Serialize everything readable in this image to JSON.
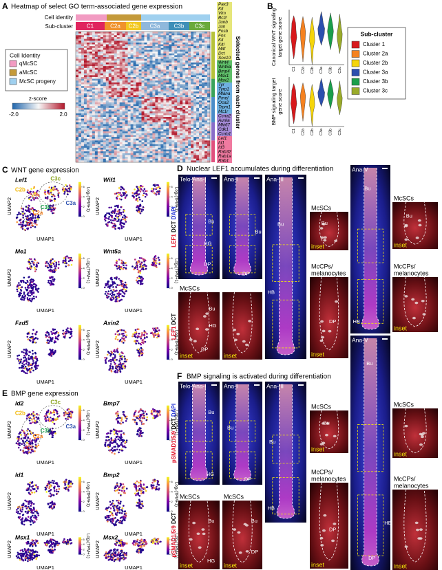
{
  "panel_a": {
    "letter": "A",
    "title": "Heatmap of select GO term-associated gene expression",
    "cell_identity_label": "Cell identity",
    "sub_cluster_label": "Sub-cluster",
    "sub_clusters": [
      {
        "text": "C1",
        "color": "#e0245e"
      },
      {
        "text": "C2a",
        "color": "#f0922b"
      },
      {
        "text": "C2b",
        "color": "#f2c81f"
      },
      {
        "text": "C3a",
        "color": "#8fb8dc"
      },
      {
        "text": "C3b",
        "color": "#3e8fb8"
      },
      {
        "text": "C3c",
        "color": "#6aaa3a"
      }
    ],
    "gene_groups": [
      {
        "color": "#e6e67a",
        "side_color": "#b6c23a",
        "genes": [
          "Pax3",
          "Kit",
          "Vim",
          "Bcl2",
          "Junb",
          "Jun",
          "Fosb",
          "Fos",
          "Kit",
          "Kitl",
          "Mitf",
          "Dct",
          "Sox10"
        ]
      },
      {
        "color": "#5fbf6a",
        "side_color": "#3aa35a",
        "genes": [
          "Wnt4",
          "Wnt5a",
          "Bmp4",
          "Msx1",
          "Msx2"
        ]
      },
      {
        "color": "#6fb0e0",
        "side_color": "#4a8cc8",
        "genes": [
          "Tyr",
          "Tyrp1",
          "Mlana",
          "Pmel",
          "Oca2",
          "Trpm1",
          "Mc1r"
        ]
      },
      {
        "color": "#a48ad6",
        "side_color": "#8a6cc8",
        "genes": [
          "Ccna2",
          "Aurka",
          "Mki67",
          "Cdk1",
          "Ccnb1"
        ]
      },
      {
        "color": "#f07aa0",
        "side_color": "#e0507e",
        "genes": [
          "Lef1",
          "Id1",
          "Id3",
          "Rab32",
          "Rab1a",
          "Rab1"
        ]
      }
    ],
    "genes_axis_label": "Selected genes from each cluster",
    "legend": {
      "title": "Cell Identity",
      "items": [
        {
          "text": "qMcSC",
          "color": "#f29bc2"
        },
        {
          "text": "aMcSC",
          "color": "#c49a3a"
        },
        {
          "text": "McSC progeny",
          "color": "#9fd0ef"
        }
      ]
    },
    "colorbar": {
      "title": "z-score",
      "min_label": "-2.0",
      "max_label": "2.0"
    }
  },
  "panel_b": {
    "letter": "B",
    "plots": [
      {
        "ylabel": [
          "Canonical WNT signaling",
          "target gene score"
        ]
      },
      {
        "ylabel": [
          "BMP signaling target",
          "gene score"
        ]
      }
    ],
    "xlabels": [
      "C1",
      "C2a",
      "C2b",
      "C3a",
      "C3b",
      "C3c"
    ],
    "legend": {
      "title": "Sub-cluster",
      "items": [
        {
          "text": "Cluster 1",
          "color": "#d7191c"
        },
        {
          "text": "Cluster 2a",
          "color": "#f58220"
        },
        {
          "text": "Cluster 2b",
          "color": "#f5d50a"
        },
        {
          "text": "Cluster 3a",
          "color": "#2b4fae"
        },
        {
          "text": "Cluster 3b",
          "color": "#1a9e4b"
        },
        {
          "text": "Cluster 3c",
          "color": "#9aab2a"
        }
      ]
    }
  },
  "panel_c": {
    "letter": "C",
    "title": "WNT gene expression",
    "xlabel": "UMAP1",
    "ylabel": "UMAP2",
    "colorbar_label": "Log₂(TPM+1)",
    "plots": [
      {
        "gene": "Lef1",
        "ticks": [
          0,
          2,
          4,
          6
        ]
      },
      {
        "gene": "Wif1",
        "ticks": [
          0,
          2,
          4,
          6
        ]
      },
      {
        "gene": "Me1",
        "ticks": [
          0,
          2,
          4,
          6
        ]
      },
      {
        "gene": "Wnt5a",
        "ticks": [
          0,
          2,
          4,
          6
        ]
      },
      {
        "gene": "Fzd5",
        "ticks": [
          0,
          2,
          4,
          6
        ]
      },
      {
        "gene": "Axin2",
        "ticks": [
          0,
          2,
          4,
          6
        ]
      }
    ],
    "cluster_labels": [
      {
        "text": "C3c",
        "color": "#8aa21f"
      },
      {
        "text": "C2b",
        "color": "#f2b705"
      },
      {
        "text": "C3b",
        "color": "#1a9e4b"
      },
      {
        "text": "C3a",
        "color": "#2b4fae"
      },
      {
        "text": "C2a",
        "color": "#f58220"
      },
      {
        "text": "C1",
        "color": "#d7191c"
      }
    ]
  },
  "panel_e": {
    "letter": "E",
    "title": "BMP gene expression",
    "xlabel": "UMAP1",
    "ylabel": "UMAP2",
    "colorbar_label": "Log₂(TPM+1)",
    "plots": [
      {
        "gene": "Id2",
        "ticks": [
          0,
          2,
          4,
          6
        ]
      },
      {
        "gene": "Bmp7",
        "ticks": [
          0,
          2,
          4,
          6
        ]
      },
      {
        "gene": "Id1",
        "ticks": [
          0,
          2,
          4,
          6
        ]
      },
      {
        "gene": "Bmp2",
        "ticks": [
          0,
          2,
          4,
          6
        ]
      },
      {
        "gene": "Msx1",
        "ticks": [
          0,
          2,
          4,
          6
        ]
      },
      {
        "gene": "Msx2",
        "ticks": [
          0,
          2,
          4,
          6
        ]
      }
    ],
    "cluster_labels": [
      {
        "text": "C3c",
        "color": "#8aa21f"
      },
      {
        "text": "C2b",
        "color": "#f2b705"
      },
      {
        "text": "C3b",
        "color": "#1a9e4b"
      },
      {
        "text": "C3a",
        "color": "#2b4fae"
      },
      {
        "text": "C2a",
        "color": "#f58220"
      },
      {
        "text": "C1",
        "color": "#d7191c"
      }
    ]
  },
  "panel_d": {
    "letter": "D",
    "title": "Nuclear LEF1 accumulates during differentiation",
    "stain_main": [
      {
        "text": "LEF1",
        "color": "#e01028"
      },
      {
        "text": "DCT",
        "color": "#000000"
      },
      {
        "text": "DAPI",
        "color": "#1a2bd6"
      }
    ],
    "stain_zoom": [
      {
        "text": "LEF1",
        "color": "#e01028"
      },
      {
        "text": "DCT",
        "color": "#000000"
      }
    ],
    "tiles": [
      {
        "title": "Telo-Ana-I",
        "labels": [
          "Bu",
          "HG",
          "DP"
        ]
      },
      {
        "title": "Ana-I",
        "labels": [
          "Bu",
          "DP"
        ]
      },
      {
        "title": "Ana-III",
        "labels": [
          "Bu",
          "HB"
        ]
      },
      {
        "caption": [
          "McSCs"
        ],
        "labels": [
          "Bu"
        ],
        "inset": "inset"
      },
      {
        "caption": [
          "McCPs/",
          "melanocytes"
        ],
        "labels": [
          "DP"
        ],
        "inset": "inset"
      },
      {
        "title": "Ana-V",
        "labels": [
          "Bu",
          "HB"
        ]
      },
      {
        "caption": [
          "McSCs"
        ],
        "labels": [
          "Bu"
        ],
        "inset": "inset"
      },
      {
        "caption": [
          "McCPs/",
          "melanocytes"
        ],
        "labels": [],
        "inset": "inset"
      },
      {
        "caption": [
          "McSCs"
        ],
        "labels": [
          "Bu",
          "HG",
          "DP"
        ],
        "inset": "inset"
      },
      {
        "labels": [],
        "inset": "inset"
      }
    ]
  },
  "panel_f": {
    "letter": "F",
    "title": "BMP signaling is activated during differentiation",
    "stain_main": [
      {
        "text": "pSMAD1/5/9",
        "color": "#e01028"
      },
      {
        "text": "DCT",
        "color": "#000000"
      },
      {
        "text": "DAPI",
        "color": "#1a2bd6"
      }
    ],
    "stain_zoom": [
      {
        "text": "pSMAD1/5/9",
        "color": "#e01028"
      },
      {
        "text": "DCT",
        "color": "#000000"
      }
    ],
    "tiles": [
      {
        "title": "Telo-Ana-I",
        "labels": [
          "Bu",
          "HG"
        ]
      },
      {
        "title": "Ana-I",
        "labels": [
          "Bu",
          "DP"
        ]
      },
      {
        "title": "Ana-III",
        "labels": [
          "Bu",
          "HB"
        ]
      },
      {
        "caption": [
          "McSCs"
        ],
        "labels": [
          "Bu"
        ],
        "inset": "inset"
      },
      {
        "caption": [
          "McCPs/",
          "melanocytes"
        ],
        "labels": [
          "DP"
        ],
        "inset": "inset"
      },
      {
        "title": "Ana-V",
        "labels": [
          "Bu",
          "HB",
          "DP"
        ]
      },
      {
        "caption": [
          "McSCs"
        ],
        "labels": [],
        "inset": "inset"
      },
      {
        "caption": [
          "McCPs/",
          "melanocytes"
        ],
        "labels": [],
        "inset": "inset"
      },
      {
        "caption": [
          "McSCs"
        ],
        "labels": [
          "Bu",
          "HG"
        ],
        "inset": "inset"
      },
      {
        "caption": [
          "McSCs"
        ],
        "labels": [
          "Bu",
          "DP"
        ],
        "inset": "inset"
      }
    ]
  }
}
